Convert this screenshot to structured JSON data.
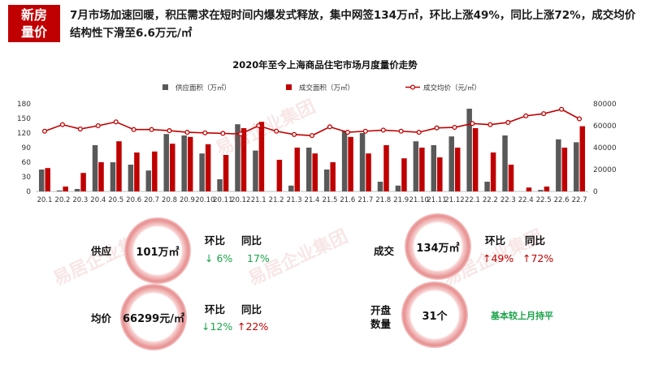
{
  "badge": {
    "line1": "新房",
    "line2": "量价"
  },
  "headline": "7月市场加速回暖，积压需求在短时间内爆发式释放，集中网签134万㎡，环比上涨49%，同比上涨72%，成交均价结构性下滑至6.6万元/㎡",
  "watermark": "易居企业集团",
  "chart_data": {
    "type": "bar",
    "title": "2020年至今上海商品住宅市场月度量价走势",
    "categories": [
      "20.1",
      "20.2",
      "20.3",
      "20.4",
      "20.5",
      "20.6",
      "20.7",
      "20.8",
      "20.9",
      "20.10",
      "20.11",
      "20.12",
      "21.1",
      "21.2",
      "21.3",
      "21.4",
      "21.5",
      "21.6",
      "21.7",
      "21.8",
      "21.9",
      "21.10",
      "21.11",
      "21.12",
      "22.1",
      "22.2",
      "22.3",
      "22.4",
      "22.5",
      "22.6",
      "22.7"
    ],
    "y_left": {
      "ticks": [
        0,
        30,
        60,
        90,
        120,
        150,
        180
      ],
      "lim": [
        0,
        180
      ]
    },
    "y_right": {
      "ticks": [
        0,
        20000,
        40000,
        60000,
        80000
      ],
      "lim": [
        0,
        80000
      ]
    },
    "series": [
      {
        "name": "供应面积（万㎡）",
        "type": "bar",
        "axis": "left",
        "color": "#595959",
        "values": [
          45,
          2,
          5,
          95,
          60,
          55,
          43,
          118,
          115,
          78,
          25,
          138,
          84,
          0,
          12,
          90,
          45,
          125,
          120,
          20,
          12,
          103,
          95,
          113,
          170,
          20,
          115,
          0,
          3,
          107,
          101
        ]
      },
      {
        "name": "成交面积（万㎡）",
        "type": "bar",
        "axis": "left",
        "color": "#c00000",
        "values": [
          48,
          10,
          38,
          60,
          103,
          80,
          82,
          98,
          112,
          97,
          75,
          130,
          143,
          65,
          90,
          78,
          60,
          112,
          78,
          95,
          68,
          90,
          70,
          90,
          130,
          80,
          55,
          8,
          10,
          90,
          134
        ]
      },
      {
        "name": "成交均价（元/㎡）",
        "type": "line",
        "axis": "right",
        "color": "#c00000",
        "values": [
          55000,
          61000,
          57000,
          60000,
          63500,
          56500,
          56500,
          55500,
          54000,
          53500,
          53000,
          52500,
          60000,
          55000,
          52000,
          51000,
          59000,
          54000,
          55000,
          56000,
          55000,
          54000,
          58000,
          58500,
          62000,
          61000,
          63000,
          69000,
          71000,
          75000,
          66299
        ]
      }
    ]
  },
  "stats": {
    "supply": {
      "label": "供应",
      "value": "101万㎡",
      "mom_label": "环比",
      "yoy_label": "同比",
      "mom": "↓ 6%",
      "yoy": "17%"
    },
    "deal": {
      "label": "成交",
      "value": "134万㎡",
      "mom_label": "环比",
      "yoy_label": "同比",
      "mom": "↑49%",
      "yoy": "↑72%"
    },
    "price": {
      "label": "均价",
      "value": "66299元/㎡",
      "mom_label": "环比",
      "yoy_label": "同比",
      "mom": "↓12%",
      "yoy": "↑22%"
    },
    "open": {
      "label1": "开盘",
      "label2": "数量",
      "value": "31个",
      "note": "基本较上月持平"
    }
  }
}
